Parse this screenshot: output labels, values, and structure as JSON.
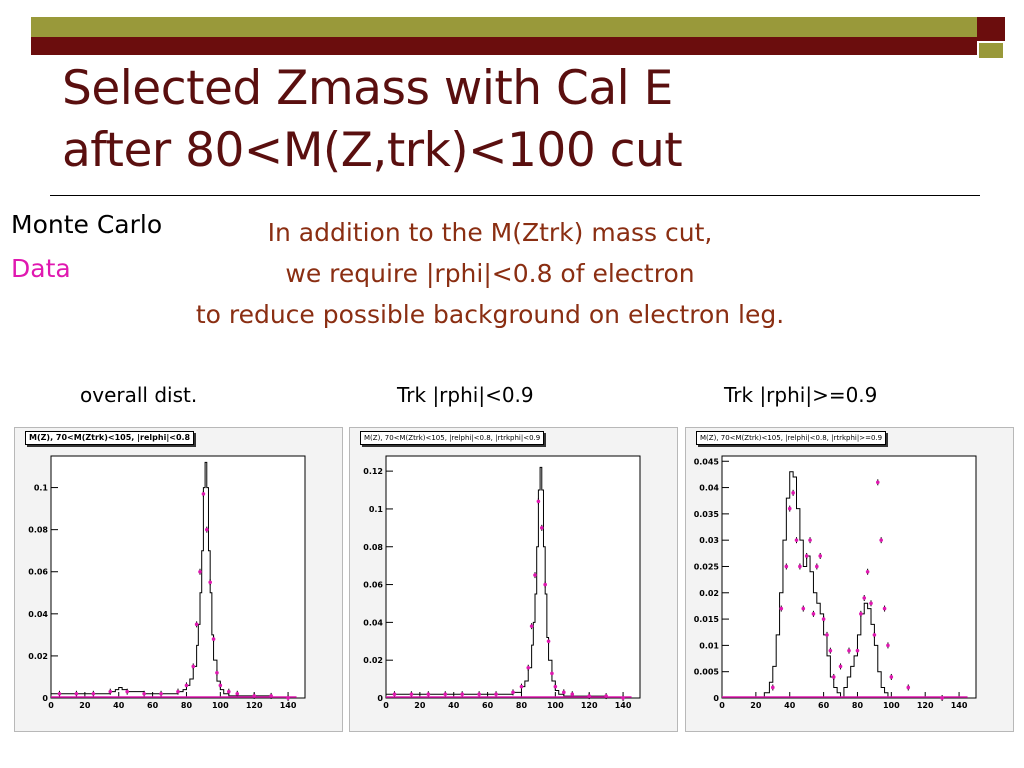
{
  "slide": {
    "title_line1": "Selected Zmass with Cal E",
    "title_line2": "after 80<M(Z,trk)<100 cut",
    "legend_mc": "Monte Carlo",
    "legend_data": "Data",
    "note_line1": "In addition to the M(Ztrk) mass cut,",
    "note_line2": "we require |rphi|<0.8 of electron",
    "note_line3": "to reduce possible background on electron leg.",
    "colors": {
      "title": "#5a0f0f",
      "note": "#8a2e12",
      "data": "#e018b0",
      "accent_olive": "#99993a",
      "accent_red": "#6b0d0d"
    }
  },
  "chart_data": [
    {
      "type": "line",
      "caption": "overall dist.",
      "title": "M(Z), 70<M(Ztrk)<105, |relphi|<0.8",
      "xlim": [
        0,
        150
      ],
      "ylim": [
        0,
        0.115
      ],
      "xticks": [
        "0",
        "20",
        "40",
        "60",
        "80",
        "100",
        "120",
        "140"
      ],
      "yticks": [
        "0",
        "0.02",
        "0.04",
        "0.06",
        "0.08",
        "0.1"
      ],
      "ytick_values": [
        0,
        0.02,
        0.04,
        0.06,
        0.08,
        0.1
      ],
      "series": [
        {
          "role": "mc_histogram",
          "x": [
            0,
            10,
            20,
            30,
            35,
            38,
            40,
            42,
            45,
            50,
            55,
            60,
            65,
            70,
            75,
            78,
            80,
            82,
            84,
            86,
            87,
            88,
            89,
            90,
            91,
            92,
            93,
            94,
            95,
            96,
            98,
            100,
            102,
            105,
            110,
            120,
            130,
            140,
            145
          ],
          "y": [
            0.002,
            0.002,
            0.002,
            0.002,
            0.003,
            0.004,
            0.005,
            0.004,
            0.003,
            0.003,
            0.002,
            0.002,
            0.002,
            0.002,
            0.003,
            0.004,
            0.006,
            0.009,
            0.015,
            0.025,
            0.035,
            0.05,
            0.07,
            0.1,
            0.112,
            0.1,
            0.07,
            0.05,
            0.03,
            0.018,
            0.008,
            0.004,
            0.002,
            0.001,
            0.001,
            0.001,
            0.0,
            0.0,
            0.0
          ]
        },
        {
          "role": "data_points",
          "x": [
            5,
            15,
            25,
            35,
            45,
            55,
            65,
            75,
            80,
            84,
            86,
            88,
            90,
            92,
            94,
            96,
            98,
            100,
            105,
            110,
            120,
            130,
            140
          ],
          "y": [
            0.002,
            0.002,
            0.002,
            0.003,
            0.003,
            0.002,
            0.002,
            0.003,
            0.006,
            0.015,
            0.035,
            0.06,
            0.097,
            0.08,
            0.055,
            0.028,
            0.012,
            0.006,
            0.003,
            0.002,
            0.001,
            0.001,
            0.0
          ]
        }
      ]
    },
    {
      "type": "line",
      "caption": "Trk |rphi|<0.9",
      "title": "M(Z), 70<M(Ztrk)<105, |relphi|<0.8, |rtrkphi|<0.9",
      "xlim": [
        0,
        150
      ],
      "ylim": [
        0,
        0.128
      ],
      "xticks": [
        "0",
        "20",
        "40",
        "60",
        "80",
        "100",
        "120",
        "140"
      ],
      "yticks": [
        "0",
        "0.02",
        "0.04",
        "0.06",
        "0.08",
        "0.1",
        "0.12"
      ],
      "ytick_values": [
        0,
        0.02,
        0.04,
        0.06,
        0.08,
        0.1,
        0.12
      ],
      "series": [
        {
          "role": "mc_histogram",
          "x": [
            0,
            10,
            20,
            30,
            40,
            50,
            60,
            70,
            75,
            80,
            82,
            84,
            86,
            87,
            88,
            89,
            90,
            91,
            92,
            93,
            94,
            95,
            96,
            98,
            100,
            102,
            105,
            110,
            120,
            130,
            140,
            145
          ],
          "y": [
            0.002,
            0.002,
            0.002,
            0.002,
            0.002,
            0.002,
            0.002,
            0.002,
            0.003,
            0.006,
            0.009,
            0.016,
            0.028,
            0.04,
            0.055,
            0.08,
            0.11,
            0.122,
            0.11,
            0.08,
            0.055,
            0.032,
            0.02,
            0.009,
            0.004,
            0.002,
            0.001,
            0.001,
            0.001,
            0.0,
            0.0,
            0.0
          ]
        },
        {
          "role": "data_points",
          "x": [
            5,
            15,
            25,
            35,
            45,
            55,
            65,
            75,
            80,
            84,
            86,
            88,
            90,
            92,
            94,
            96,
            98,
            100,
            105,
            110,
            120,
            130,
            140
          ],
          "y": [
            0.002,
            0.002,
            0.002,
            0.002,
            0.002,
            0.002,
            0.002,
            0.003,
            0.006,
            0.016,
            0.038,
            0.065,
            0.104,
            0.09,
            0.06,
            0.03,
            0.013,
            0.006,
            0.003,
            0.002,
            0.001,
            0.001,
            0.0
          ]
        }
      ]
    },
    {
      "type": "line",
      "caption": "Trk |rphi|>=0.9",
      "title": "M(Z), 70<M(Ztrk)<105, |relphi|<0.8, |rtrkphi|>=0.9",
      "xlim": [
        0,
        150
      ],
      "ylim": [
        0,
        0.046
      ],
      "xticks": [
        "0",
        "20",
        "40",
        "60",
        "80",
        "100",
        "120",
        "140"
      ],
      "yticks": [
        "0",
        "0.005",
        "0.01",
        "0.015",
        "0.02",
        "0.025",
        "0.03",
        "0.035",
        "0.04",
        "0.045"
      ],
      "ytick_values": [
        0,
        0.005,
        0.01,
        0.015,
        0.02,
        0.025,
        0.03,
        0.035,
        0.04,
        0.045
      ],
      "series": [
        {
          "role": "mc_histogram",
          "x": [
            0,
            20,
            25,
            28,
            30,
            32,
            34,
            36,
            38,
            40,
            42,
            44,
            46,
            48,
            50,
            52,
            54,
            56,
            58,
            60,
            62,
            64,
            66,
            68,
            70,
            72,
            74,
            76,
            78,
            80,
            82,
            84,
            86,
            88,
            90,
            92,
            94,
            96,
            98,
            100,
            105,
            110,
            120,
            130,
            140,
            145
          ],
          "y": [
            0.0,
            0.0,
            0.001,
            0.003,
            0.006,
            0.012,
            0.02,
            0.03,
            0.038,
            0.043,
            0.042,
            0.036,
            0.03,
            0.025,
            0.027,
            0.024,
            0.02,
            0.018,
            0.016,
            0.012,
            0.008,
            0.004,
            0.002,
            0.001,
            0.0,
            0.002,
            0.004,
            0.006,
            0.008,
            0.012,
            0.016,
            0.018,
            0.017,
            0.014,
            0.01,
            0.005,
            0.002,
            0.001,
            0.0,
            0.0,
            0.0,
            0.0,
            0.0,
            0.0,
            0.0,
            0.0
          ]
        },
        {
          "role": "data_points",
          "x": [
            30,
            35,
            38,
            40,
            42,
            44,
            46,
            48,
            50,
            52,
            54,
            56,
            58,
            60,
            62,
            64,
            66,
            70,
            75,
            80,
            82,
            84,
            86,
            88,
            90,
            92,
            94,
            96,
            98,
            100,
            110,
            130
          ],
          "y": [
            0.002,
            0.017,
            0.025,
            0.036,
            0.039,
            0.03,
            0.025,
            0.017,
            0.027,
            0.03,
            0.016,
            0.025,
            0.027,
            0.015,
            0.012,
            0.009,
            0.004,
            0.006,
            0.009,
            0.009,
            0.016,
            0.019,
            0.024,
            0.018,
            0.012,
            0.041,
            0.03,
            0.017,
            0.01,
            0.004,
            0.002,
            0.0
          ]
        }
      ]
    }
  ]
}
